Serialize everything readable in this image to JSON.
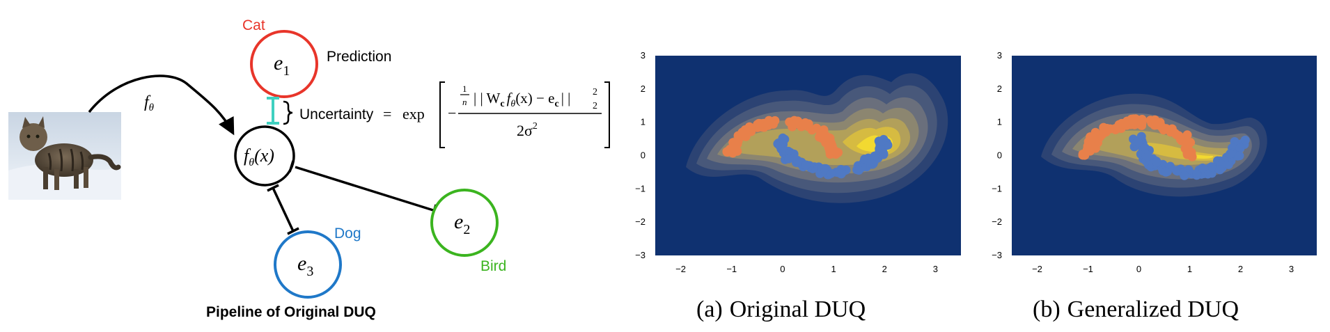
{
  "pipeline": {
    "title": "Pipeline of Original DUQ",
    "mapping_label": "f",
    "mapping_subscript": "θ",
    "feature_node": {
      "main": "f",
      "sub": "θ",
      "arg": "(x)"
    },
    "centroids": [
      {
        "id": "e1",
        "symbol": "e",
        "index": "1",
        "class_label": "Cat",
        "color": "#e8352a"
      },
      {
        "id": "e2",
        "symbol": "e",
        "index": "2",
        "class_label": "Bird",
        "color": "#3bb41f"
      },
      {
        "id": "e3",
        "symbol": "e",
        "index": "3",
        "class_label": "Dog",
        "color": "#1f78c8"
      }
    ],
    "prediction_label": "Prediction",
    "uncertainty": {
      "label": "Uncertainty",
      "equals": "=",
      "exp": "exp",
      "numerator_prefix": "−",
      "frac_num": "1",
      "frac_den": "n",
      "norm_expr": "| | W",
      "norm_sub": "c",
      "norm_mid": "f",
      "norm_theta": "θ",
      "norm_x": "(x) − e",
      "norm_sub2": "c",
      "norm_close": "| |",
      "sup": "2",
      "sub": "2",
      "denominator": "2σ",
      "den_sup": "2"
    },
    "bracket_color": "#3fd0c0"
  },
  "panels": [
    {
      "caption_label": "(a)",
      "caption_title": "Original DUQ"
    },
    {
      "caption_label": "(b)",
      "caption_title": "Generalized DUQ"
    }
  ],
  "axes": {
    "xticks": [
      "−2",
      "−1",
      "0",
      "1",
      "2",
      "3"
    ],
    "yticks": [
      "3",
      "2",
      "1",
      "0",
      "−1",
      "−2",
      "−3"
    ]
  },
  "colors": {
    "background": "#0f3170",
    "levels": [
      "#2c4373",
      "#48587a",
      "#6a6f7c",
      "#8c8670",
      "#b2a05a",
      "#d6bb41",
      "#f2d931"
    ],
    "class_a": "#e8804a",
    "class_b": "#4f79c4"
  }
}
